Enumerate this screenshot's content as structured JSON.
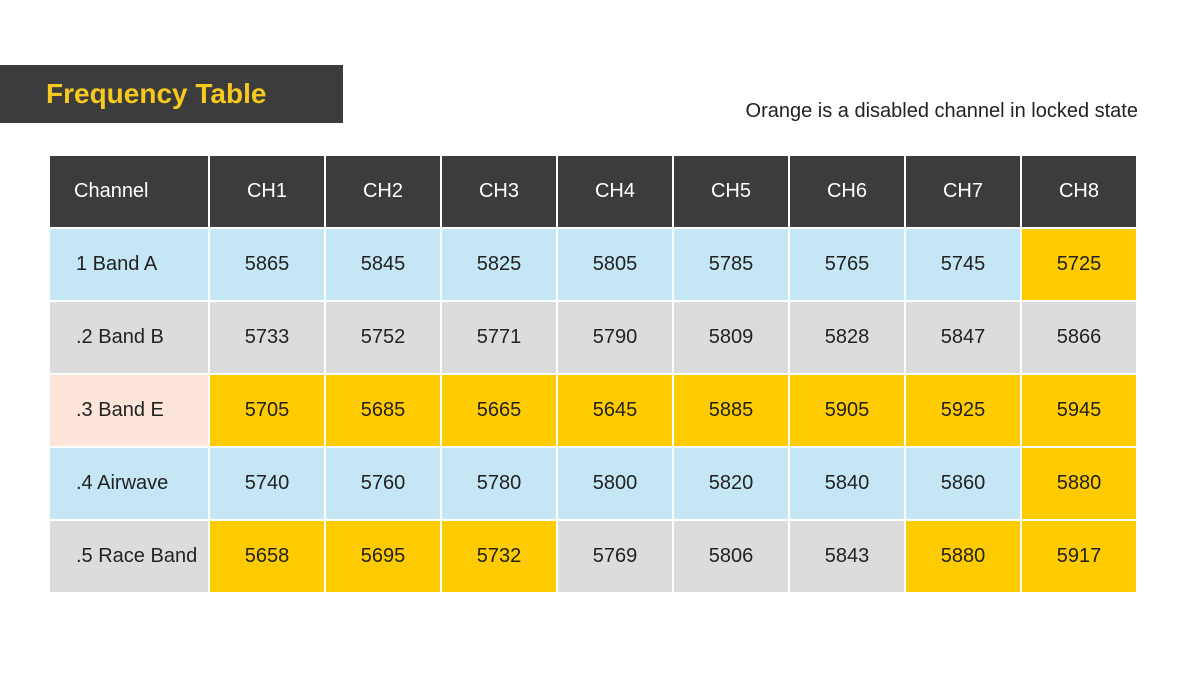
{
  "title": "Frequency Table",
  "note": "Orange is a disabled channel in locked state",
  "table": {
    "header": [
      "Channel",
      "CH1",
      "CH2",
      "CH3",
      "CH4",
      "CH5",
      "CH6",
      "CH7",
      "CH8"
    ],
    "rows": [
      {
        "label": "1 Band A",
        "values": [
          "5865",
          "5845",
          "5825",
          "5805",
          "5785",
          "5765",
          "5745",
          "5725"
        ],
        "disabled": [
          false,
          false,
          false,
          false,
          false,
          false,
          false,
          true
        ]
      },
      {
        "label": ".2 Band B",
        "values": [
          "5733",
          "5752",
          "5771",
          "5790",
          "5809",
          "5828",
          "5847",
          "5866"
        ],
        "disabled": [
          false,
          false,
          false,
          false,
          false,
          false,
          false,
          false
        ]
      },
      {
        "label": ".3 Band E",
        "values": [
          "5705",
          "5685",
          "5665",
          "5645",
          "5885",
          "5905",
          "5925",
          "5945"
        ],
        "disabled": [
          true,
          true,
          true,
          true,
          true,
          true,
          true,
          true
        ]
      },
      {
        "label": ".4 Airwave",
        "values": [
          "5740",
          "5760",
          "5780",
          "5800",
          "5820",
          "5840",
          "5860",
          "5880"
        ],
        "disabled": [
          false,
          false,
          false,
          false,
          false,
          false,
          false,
          true
        ]
      },
      {
        "label": ".5 Race Band",
        "values": [
          "5658",
          "5695",
          "5732",
          "5769",
          "5806",
          "5843",
          "5880",
          "5917"
        ],
        "disabled": [
          true,
          true,
          true,
          false,
          false,
          false,
          true,
          true
        ]
      }
    ]
  },
  "colors": {
    "header_bg": "#3c3c3c",
    "title_text": "#f7c81e",
    "row_blue": "#c4e6f5",
    "row_gray": "#dcdcdd",
    "row_peach": "#fde6d9",
    "disabled": "#fdcb00"
  }
}
